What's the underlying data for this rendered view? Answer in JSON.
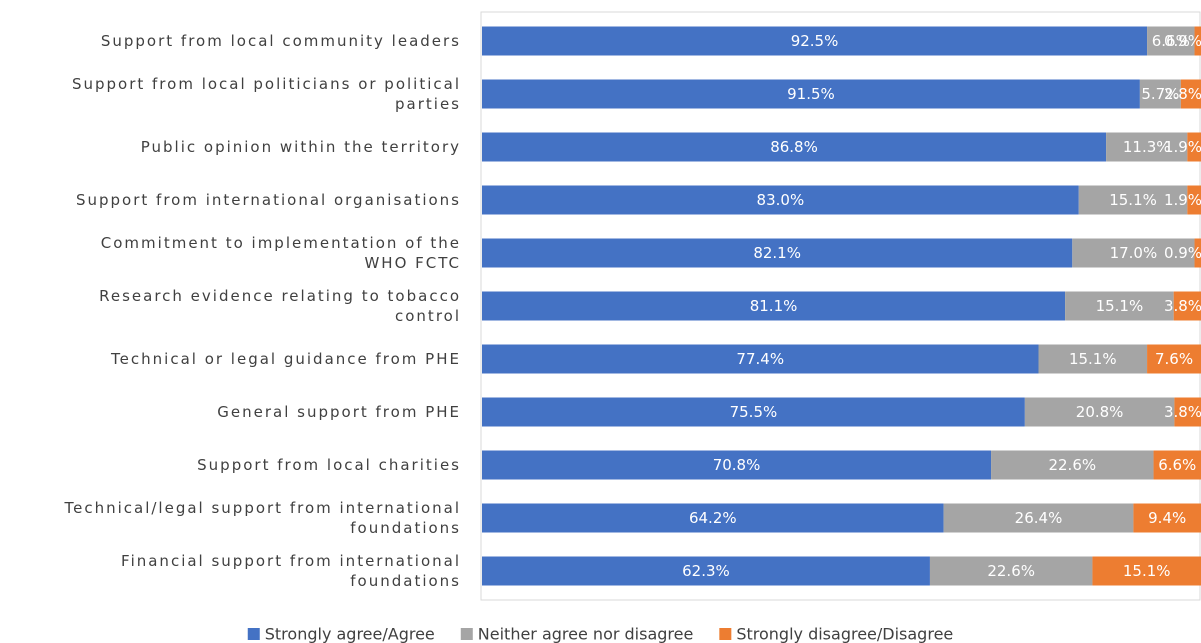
{
  "chart_data": {
    "type": "bar",
    "orientation": "horizontal",
    "stacked": true,
    "percent_stacked": true,
    "categories": [
      [
        "Support from local community leaders"
      ],
      [
        "Support from local politicians or political",
        "parties"
      ],
      [
        "Public opinion within the territory"
      ],
      [
        "Support from international organisations"
      ],
      [
        "Commitment to implementation of the",
        "WHO FCTC"
      ],
      [
        "Research evidence relating to tobacco",
        "control"
      ],
      [
        "Technical or legal guidance from PHE"
      ],
      [
        "General support from PHE"
      ],
      [
        "Support from local charities"
      ],
      [
        "Technical/legal support from international",
        "foundations"
      ],
      [
        "Financial support from international",
        "foundations"
      ]
    ],
    "series": [
      {
        "name": "Strongly agree/Agree",
        "color": "#4472C4",
        "values": [
          92.5,
          91.5,
          86.8,
          83.0,
          82.1,
          81.1,
          77.4,
          75.5,
          70.8,
          64.2,
          62.3
        ],
        "labels": [
          "92.5%",
          "91.5%",
          "86.8%",
          "83.0%",
          "82.1%",
          "81.1%",
          "77.4%",
          "75.5%",
          "70.8%",
          "64.2%",
          "62.3%"
        ]
      },
      {
        "name": "Neither agree nor disagree",
        "color": "#A5A5A5",
        "values": [
          6.6,
          5.7,
          11.3,
          15.1,
          17.0,
          15.1,
          15.1,
          20.8,
          22.6,
          26.4,
          22.6
        ],
        "labels": [
          "6.6%",
          "5.7%",
          "11.3%",
          "15.1%",
          "17.0%",
          "15.1%",
          "15.1%",
          "20.8%",
          "22.6%",
          "26.4%",
          "22.6%"
        ]
      },
      {
        "name": "Strongly disagree/Disagree",
        "color": "#ED7D31",
        "values": [
          0.9,
          2.8,
          1.9,
          1.9,
          0.9,
          3.8,
          7.6,
          3.8,
          6.6,
          9.4,
          15.1
        ],
        "labels": [
          "0.9%",
          "2.8%",
          "1.9%",
          "1.9%",
          "0.9%",
          "3.8%",
          "7.6%",
          "3.8%",
          "6.6%",
          "9.4%",
          "15.1%"
        ]
      }
    ],
    "xlim": [
      0,
      100
    ],
    "grid": false,
    "legend_position": "bottom"
  }
}
